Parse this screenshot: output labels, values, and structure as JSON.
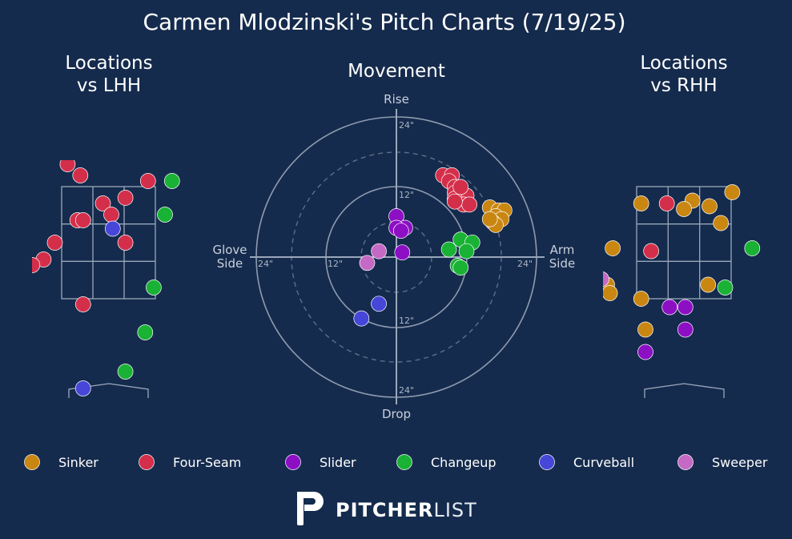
{
  "chart_data": {
    "type": "scatter",
    "title": "Carmen Mlodzinski's Pitch Charts (7/19/25)",
    "panels": {
      "lhh": {
        "title_line1": "Locations",
        "title_line2": "vs LHH"
      },
      "movement": {
        "title": "Movement",
        "top_label": "Rise",
        "bottom_label": "Drop",
        "left_label_1": "Glove",
        "left_label_2": "Side",
        "right_label_1": "Arm",
        "right_label_2": "Side",
        "ring_labels": {
          "top_24": "24\"",
          "top_12": "12\"",
          "bottom_12": "12\"",
          "bottom_24": "24\"",
          "left_24": "24\"",
          "left_12": "12\"",
          "right_24": "24\""
        },
        "xlim": [
          -24,
          24
        ],
        "ylim": [
          -24,
          24
        ]
      },
      "rhh": {
        "title_line1": "Locations",
        "title_line2": "vs RHH"
      }
    },
    "pitch_types": [
      {
        "name": "Sinker",
        "color": "#c98712"
      },
      {
        "name": "Four-Seam",
        "color": "#d42f4a"
      },
      {
        "name": "Slider",
        "color": "#8d0fc4"
      },
      {
        "name": "Changeup",
        "color": "#19b235"
      },
      {
        "name": "Curveball",
        "color": "#4646d8"
      },
      {
        "name": "Sweeper",
        "color": "#c46ac4"
      }
    ],
    "movement_points": [
      {
        "type": "Four-Seam",
        "x": 8.0,
        "y": 14.0
      },
      {
        "type": "Four-Seam",
        "x": 9.5,
        "y": 14.0
      },
      {
        "type": "Four-Seam",
        "x": 9.0,
        "y": 13.0
      },
      {
        "type": "Four-Seam",
        "x": 10.0,
        "y": 12.0
      },
      {
        "type": "Four-Seam",
        "x": 11.0,
        "y": 11.0
      },
      {
        "type": "Four-Seam",
        "x": 10.0,
        "y": 11.0
      },
      {
        "type": "Four-Seam",
        "x": 12.0,
        "y": 10.5
      },
      {
        "type": "Four-Seam",
        "x": 10.0,
        "y": 10.0
      },
      {
        "type": "Four-Seam",
        "x": 11.5,
        "y": 9.0
      },
      {
        "type": "Four-Seam",
        "x": 12.5,
        "y": 9.0
      },
      {
        "type": "Four-Seam",
        "x": 10.0,
        "y": 9.5
      },
      {
        "type": "Four-Seam",
        "x": 11.0,
        "y": 12.0
      },
      {
        "type": "Sinker",
        "x": 16.0,
        "y": 8.5
      },
      {
        "type": "Sinker",
        "x": 17.5,
        "y": 8.0
      },
      {
        "type": "Sinker",
        "x": 18.5,
        "y": 8.0
      },
      {
        "type": "Sinker",
        "x": 17.0,
        "y": 7.0
      },
      {
        "type": "Sinker",
        "x": 18.0,
        "y": 6.5
      },
      {
        "type": "Sinker",
        "x": 16.5,
        "y": 6.0
      },
      {
        "type": "Sinker",
        "x": 17.0,
        "y": 5.5
      },
      {
        "type": "Sinker",
        "x": 16.0,
        "y": 6.5
      },
      {
        "type": "Slider",
        "x": 0.0,
        "y": 7.0
      },
      {
        "type": "Slider",
        "x": 1.5,
        "y": 5.0
      },
      {
        "type": "Slider",
        "x": 0.0,
        "y": 5.0
      },
      {
        "type": "Slider",
        "x": 0.8,
        "y": 4.5
      },
      {
        "type": "Slider",
        "x": 1.0,
        "y": 0.8
      },
      {
        "type": "Changeup",
        "x": 11.0,
        "y": 3.0
      },
      {
        "type": "Changeup",
        "x": 13.0,
        "y": 2.5
      },
      {
        "type": "Changeup",
        "x": 9.0,
        "y": 1.3
      },
      {
        "type": "Changeup",
        "x": 12.0,
        "y": 1.0
      },
      {
        "type": "Changeup",
        "x": 10.5,
        "y": -1.5
      },
      {
        "type": "Changeup",
        "x": 11.0,
        "y": -1.8
      },
      {
        "type": "Curveball",
        "x": -3.0,
        "y": -8.0
      },
      {
        "type": "Curveball",
        "x": -6.0,
        "y": -10.5
      },
      {
        "type": "Sweeper",
        "x": -3.0,
        "y": 1.0
      },
      {
        "type": "Sweeper",
        "x": -5.0,
        "y": -1.0
      }
    ],
    "location_lhh_points": [
      {
        "type": "Four-Seam",
        "x": -1.45,
        "y": 3.9
      },
      {
        "type": "Four-Seam",
        "x": -1.0,
        "y": 3.7
      },
      {
        "type": "Four-Seam",
        "x": 1.4,
        "y": 3.6
      },
      {
        "type": "Four-Seam",
        "x": -0.2,
        "y": 3.2
      },
      {
        "type": "Four-Seam",
        "x": 0.1,
        "y": 3.0
      },
      {
        "type": "Four-Seam",
        "x": 0.6,
        "y": 3.3
      },
      {
        "type": "Four-Seam",
        "x": -1.1,
        "y": 2.9
      },
      {
        "type": "Four-Seam",
        "x": -0.9,
        "y": 2.9
      },
      {
        "type": "Four-Seam",
        "x": -1.9,
        "y": 2.5
      },
      {
        "type": "Four-Seam",
        "x": 0.6,
        "y": 2.5
      },
      {
        "type": "Four-Seam",
        "x": -2.3,
        "y": 2.2
      },
      {
        "type": "Four-Seam",
        "x": -2.7,
        "y": 2.1
      },
      {
        "type": "Four-Seam",
        "x": -0.9,
        "y": 1.4
      },
      {
        "type": "Curveball",
        "x": 0.15,
        "y": 2.75
      },
      {
        "type": "Curveball",
        "x": -0.9,
        "y": -0.1
      },
      {
        "type": "Changeup",
        "x": 2.0,
        "y": 3.0
      },
      {
        "type": "Changeup",
        "x": 1.6,
        "y": 1.7
      },
      {
        "type": "Changeup",
        "x": 1.3,
        "y": 0.9
      },
      {
        "type": "Changeup",
        "x": 0.6,
        "y": 0.2
      },
      {
        "type": "Changeup",
        "x": 2.25,
        "y": 3.6
      }
    ],
    "location_rhh_points": [
      {
        "type": "Sinker",
        "x": -1.5,
        "y": 3.2
      },
      {
        "type": "Sinker",
        "x": 0.3,
        "y": 3.25
      },
      {
        "type": "Sinker",
        "x": 0.0,
        "y": 3.1
      },
      {
        "type": "Sinker",
        "x": 0.9,
        "y": 3.15
      },
      {
        "type": "Sinker",
        "x": 1.7,
        "y": 3.4
      },
      {
        "type": "Sinker",
        "x": 1.3,
        "y": 2.85
      },
      {
        "type": "Sinker",
        "x": -2.5,
        "y": 2.4
      },
      {
        "type": "Sinker",
        "x": -2.7,
        "y": 1.75
      },
      {
        "type": "Sinker",
        "x": -2.6,
        "y": 1.6
      },
      {
        "type": "Sinker",
        "x": -1.5,
        "y": 1.5
      },
      {
        "type": "Sinker",
        "x": 0.85,
        "y": 1.75
      },
      {
        "type": "Sinker",
        "x": -1.35,
        "y": 0.95
      },
      {
        "type": "Four-Seam",
        "x": -0.6,
        "y": 3.2
      },
      {
        "type": "Four-Seam",
        "x": -1.15,
        "y": 2.35
      },
      {
        "type": "Slider",
        "x": -0.5,
        "y": 1.35
      },
      {
        "type": "Slider",
        "x": 0.05,
        "y": 1.35
      },
      {
        "type": "Slider",
        "x": 0.05,
        "y": 0.95
      },
      {
        "type": "Slider",
        "x": -1.35,
        "y": 0.55
      },
      {
        "type": "Changeup",
        "x": 2.4,
        "y": 2.4
      },
      {
        "type": "Changeup",
        "x": 1.45,
        "y": 1.7
      },
      {
        "type": "Sweeper",
        "x": -2.9,
        "y": 1.85
      }
    ]
  },
  "branding": {
    "wordmark_bold": "PITCHER",
    "wordmark_light": "LIST"
  }
}
